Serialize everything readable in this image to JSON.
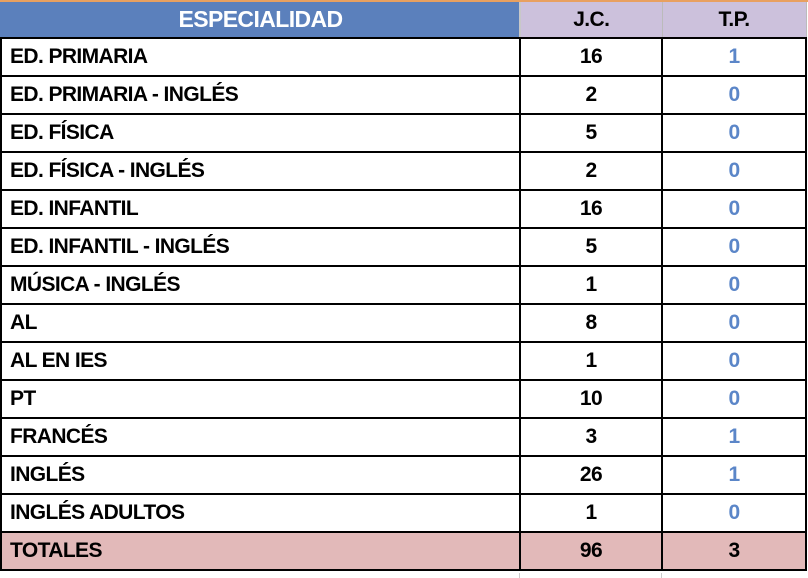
{
  "headers": {
    "especialidad": "ESPECIALIDAD",
    "jc": "J.C.",
    "tp": "T.P."
  },
  "rows": [
    {
      "name": "ED. PRIMARIA",
      "jc": "16",
      "tp": "1"
    },
    {
      "name": "ED. PRIMARIA - INGLÉS",
      "jc": "2",
      "tp": "0"
    },
    {
      "name": "ED. FÍSICA",
      "jc": "5",
      "tp": "0"
    },
    {
      "name": "ED. FÍSICA - INGLÉS",
      "jc": "2",
      "tp": "0"
    },
    {
      "name": "ED. INFANTIL",
      "jc": "16",
      "tp": "0"
    },
    {
      "name": "ED. INFANTIL - INGLÉS",
      "jc": "5",
      "tp": "0"
    },
    {
      "name": "MÚSICA - INGLÉS",
      "jc": "1",
      "tp": "0"
    },
    {
      "name": "AL",
      "jc": "8",
      "tp": "0"
    },
    {
      "name": "AL EN IES",
      "jc": "1",
      "tp": "0"
    },
    {
      "name": "PT",
      "jc": "10",
      "tp": "0"
    },
    {
      "name": "FRANCÉS",
      "jc": "3",
      "tp": "1"
    },
    {
      "name": "INGLÉS",
      "jc": "26",
      "tp": "1"
    },
    {
      "name": "INGLÉS ADULTOS",
      "jc": "1",
      "tp": "0"
    }
  ],
  "totals": {
    "name": "TOTALES",
    "jc": "96",
    "tp": "3"
  },
  "colors": {
    "header_blue": "#5b80bc",
    "header_lavender": "#ccc1dc",
    "totals_pink": "#e2b9b9",
    "tp_blue": "#5b86c8"
  }
}
